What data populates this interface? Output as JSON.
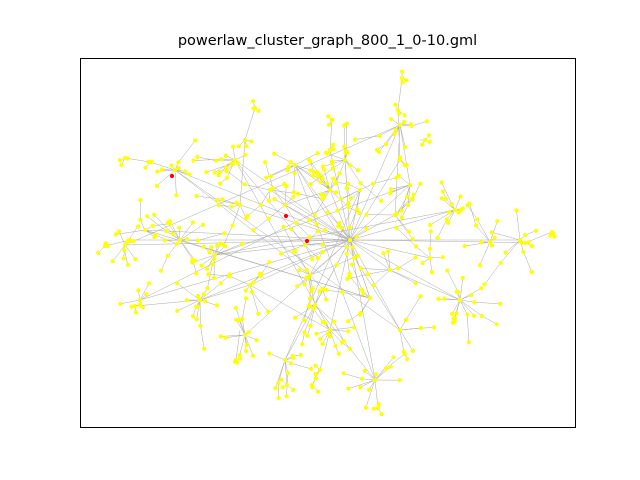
{
  "figure": {
    "title": "powerlaw_cluster_graph_800_1_0-10.gml"
  },
  "graph": {
    "node_color": "#ffff00",
    "highlight_color": "#ff0000",
    "edge_color": "#a9a9a9",
    "axes_ticks": "none"
  }
}
